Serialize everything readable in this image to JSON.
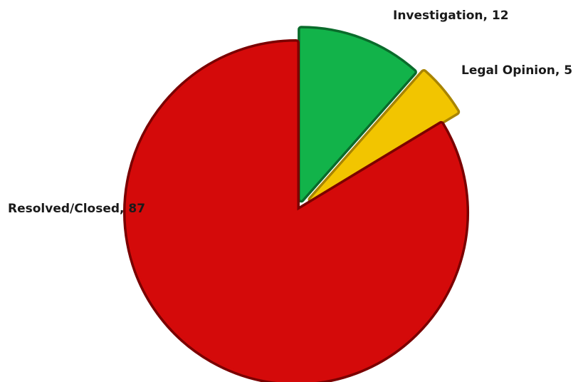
{
  "chart_data": {
    "type": "pie",
    "style": "3d-exploded",
    "legend": "none",
    "labels_format": "category, value",
    "slices": [
      {
        "label": "Investigation",
        "value": 12,
        "color": "#12b34a",
        "edge": "#0a6b2b",
        "exploded": true
      },
      {
        "label": "Legal Opinion",
        "value": 5,
        "color": "#f2c500",
        "edge": "#a88400",
        "exploded": true
      },
      {
        "label": "Resolved/Closed",
        "value": 87,
        "color": "#d40a0a",
        "edge": "#7a0000",
        "exploded": false
      }
    ],
    "slice_labels": [
      "Investigation, 12",
      "Legal Opinion, 5",
      "Resolved/Closed, 87"
    ]
  }
}
